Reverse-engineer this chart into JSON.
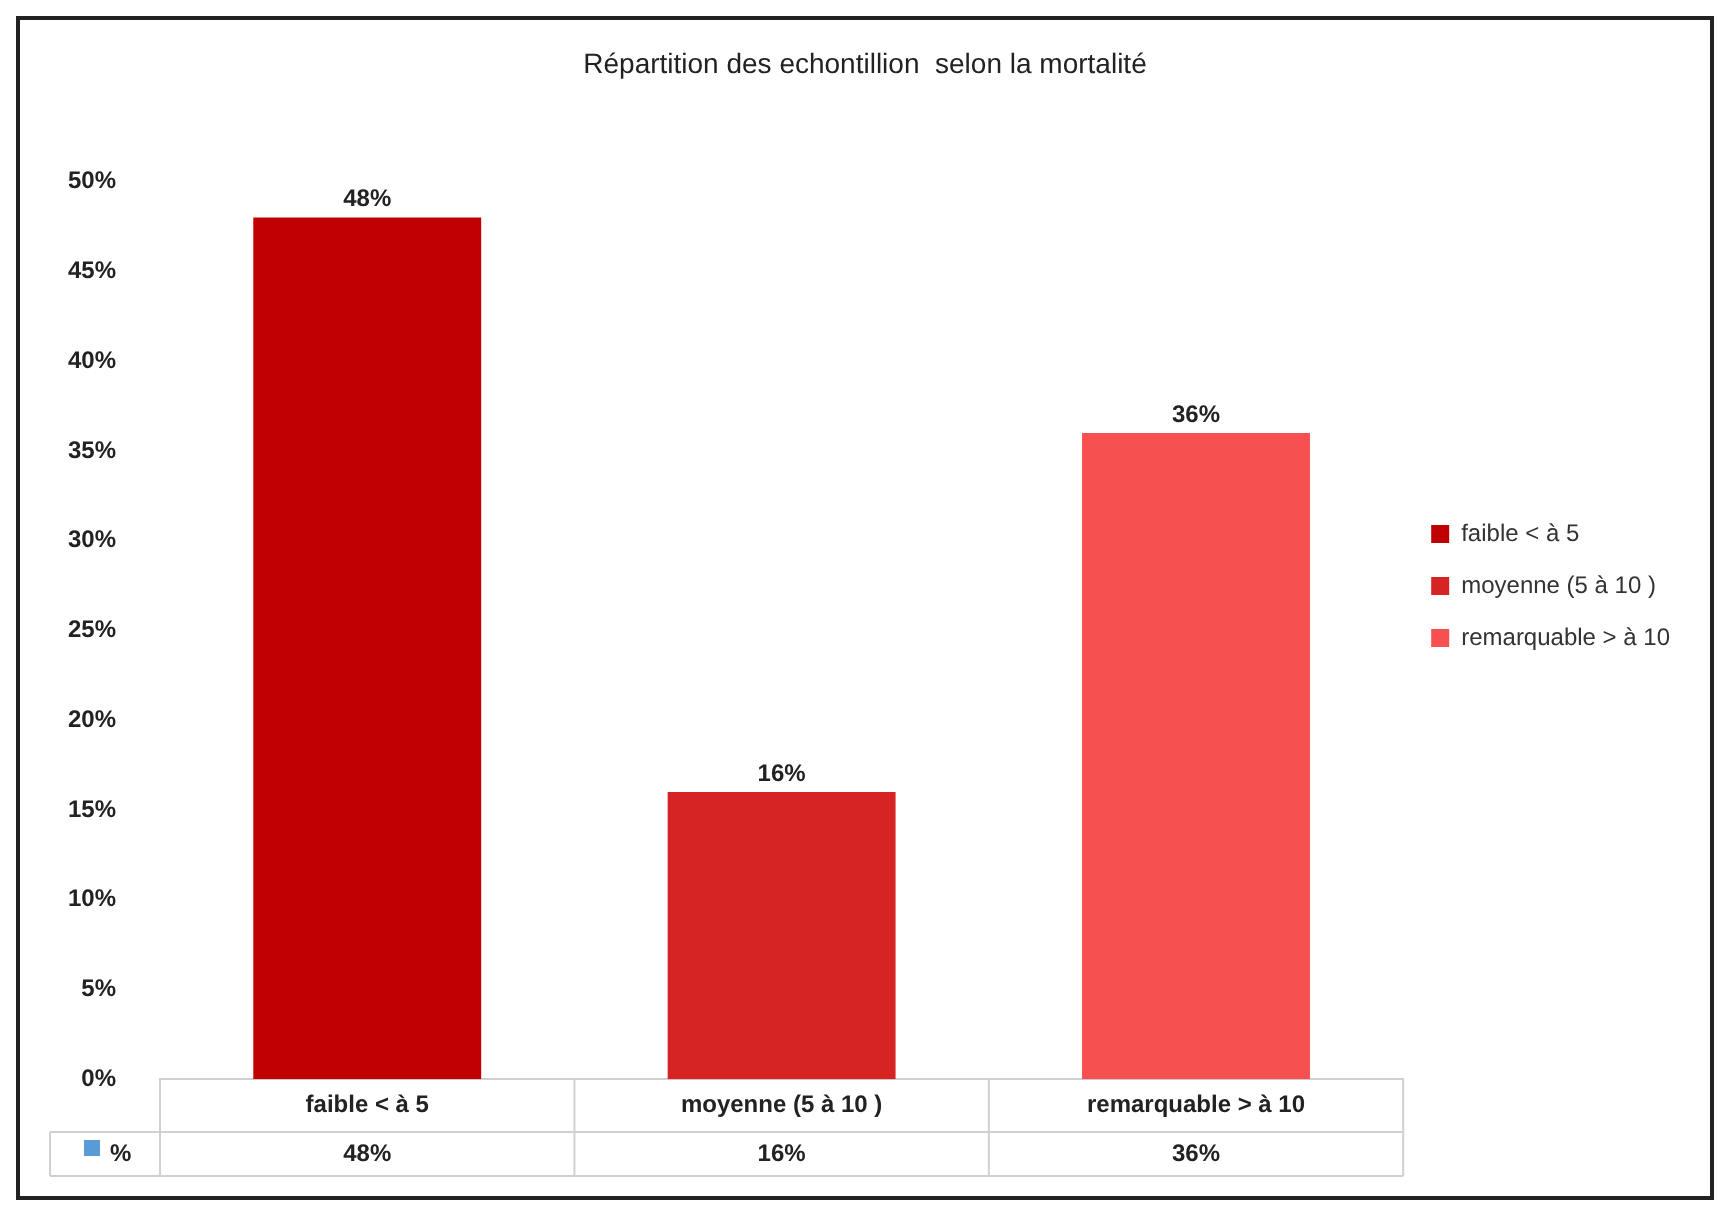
{
  "chart_data": {
    "type": "bar",
    "title": "Répartition des echontillion  selon la mortalité",
    "categories": [
      "faible < à 5",
      "moyenne (5 à 10 )",
      "remarquable > à 10"
    ],
    "series": [
      {
        "name": "faible < à 5",
        "color": "#c00000",
        "values": [
          48,
          null,
          null
        ],
        "value_labels": [
          "48%",
          null,
          null
        ]
      },
      {
        "name": "moyenne (5 à 10 )",
        "color": "#d62424",
        "values": [
          null,
          16,
          null
        ],
        "value_labels": [
          null,
          "16%",
          null
        ]
      },
      {
        "name": "remarquable > à 10",
        "color": "#f75050",
        "values": [
          null,
          null,
          36
        ],
        "value_labels": [
          null,
          null,
          "36%"
        ]
      }
    ],
    "annotations": [
      "%"
    ],
    "ylim": [
      0,
      50
    ],
    "yticks": [
      {
        "value": 0,
        "label": "0%"
      },
      {
        "value": 5,
        "label": "5%"
      },
      {
        "value": 10,
        "label": "10%"
      },
      {
        "value": 15,
        "label": "15%"
      },
      {
        "value": 20,
        "label": "20%"
      },
      {
        "value": 25,
        "label": "25%"
      },
      {
        "value": 30,
        "label": "30%"
      },
      {
        "value": 35,
        "label": "35%"
      },
      {
        "value": 40,
        "label": "40%"
      },
      {
        "value": 45,
        "label": "45%"
      },
      {
        "value": 50,
        "label": "50%"
      }
    ],
    "grid": false,
    "legend": "right"
  }
}
